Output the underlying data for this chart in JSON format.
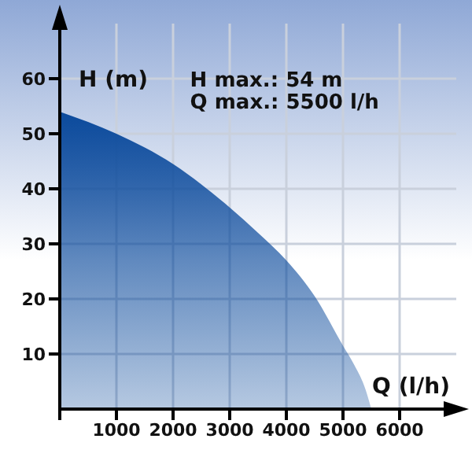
{
  "chart_data": {
    "type": "area",
    "xlabel": "Q (l/h)",
    "ylabel": "H (m)",
    "annotations": [
      "H max.: 54 m",
      "Q max.: 5500 l/h"
    ],
    "x": [
      0,
      1000,
      2000,
      2500,
      3000,
      3500,
      4000,
      4500,
      5000,
      5200,
      5400,
      5500
    ],
    "series": [
      {
        "color": "#0b4a9c",
        "values": [
          54,
          50,
          44.5,
          40.8,
          36.6,
          32,
          27,
          20.5,
          11.5,
          8,
          3.5,
          0
        ]
      }
    ],
    "xlim": [
      0,
      7000
    ],
    "xticks": [
      {
        "value": 0,
        "label": null
      },
      1000,
      2000,
      3000,
      4000,
      5000,
      6000
    ],
    "ylim": [
      0,
      70
    ],
    "yticks": [
      10,
      20,
      30,
      40,
      50,
      60
    ],
    "grid": true
  }
}
